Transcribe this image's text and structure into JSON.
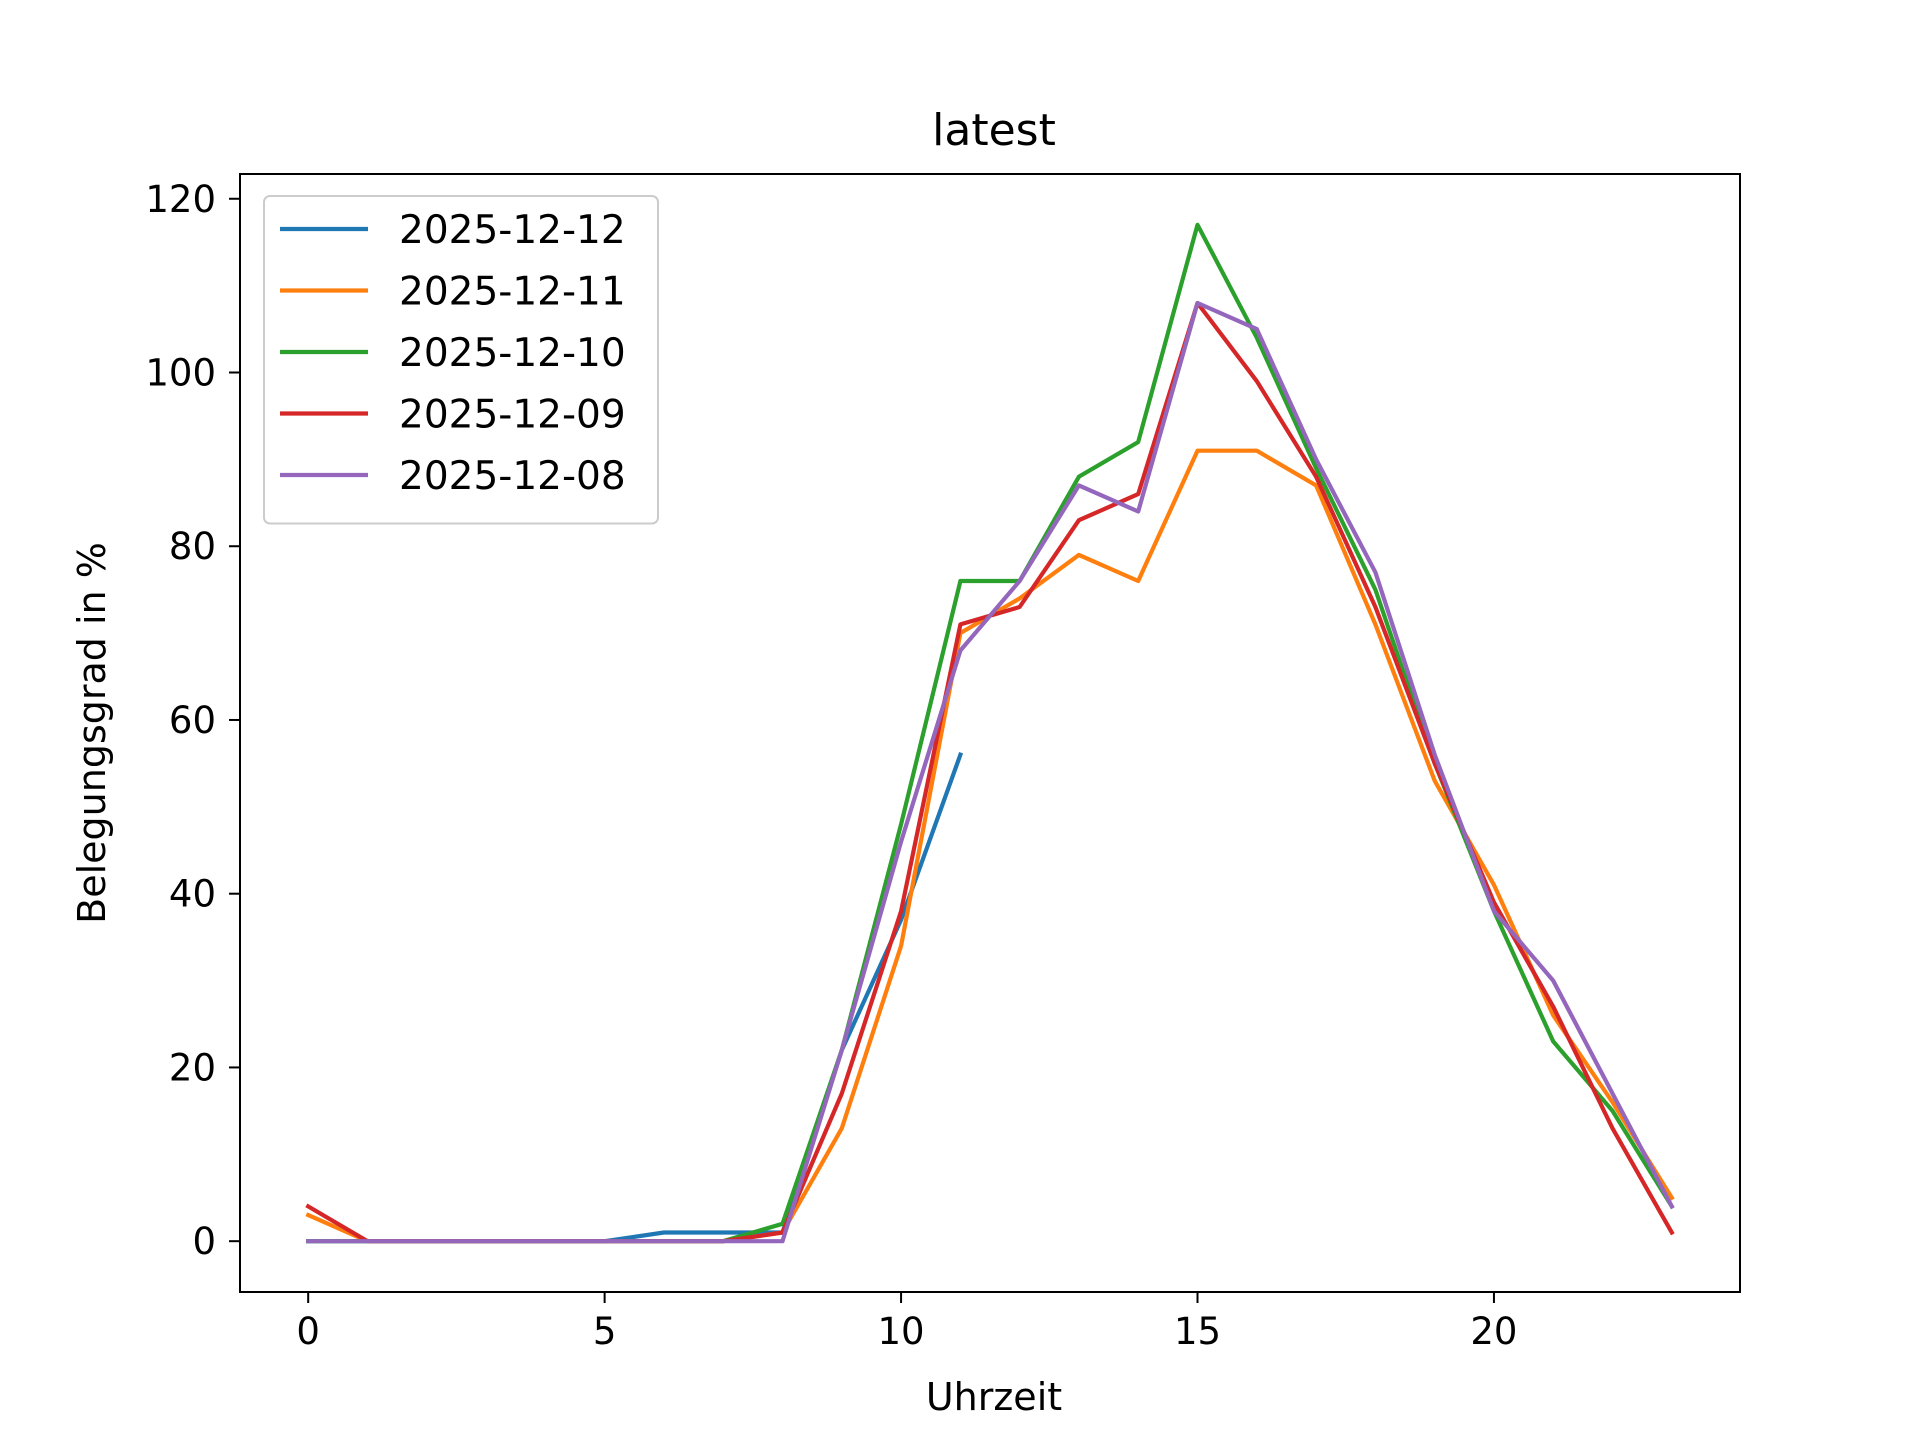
{
  "chart_data": {
    "type": "line",
    "title": "latest",
    "xlabel": "Uhrzeit",
    "ylabel": "Belegungsgrad in %",
    "xlim": [
      -1.15,
      24.15
    ],
    "ylim": [
      -5.85,
      122.85
    ],
    "xticks": [
      0,
      5,
      10,
      15,
      20
    ],
    "yticks": [
      0,
      20,
      40,
      60,
      80,
      100,
      120
    ],
    "grid": false,
    "legend_position": "upper-left",
    "series": [
      {
        "name": "2025-12-12",
        "color": "#1f77b4",
        "x": [
          0,
          1,
          2,
          3,
          4,
          5,
          6,
          7,
          8,
          9,
          10,
          11
        ],
        "y": [
          0,
          0,
          0,
          0,
          0,
          0,
          1,
          1,
          1,
          22,
          37,
          56
        ]
      },
      {
        "name": "2025-12-11",
        "color": "#ff7f0e",
        "x": [
          0,
          1,
          2,
          3,
          4,
          5,
          6,
          7,
          8,
          9,
          10,
          11,
          12,
          13,
          14,
          15,
          16,
          17,
          18,
          19,
          20,
          21,
          22,
          23
        ],
        "y": [
          3,
          0,
          0,
          0,
          0,
          0,
          0,
          0,
          1,
          13,
          34,
          70,
          74,
          79,
          76,
          91,
          91,
          87,
          71,
          53,
          41,
          26,
          16,
          5
        ]
      },
      {
        "name": "2025-12-10",
        "color": "#2ca02c",
        "x": [
          0,
          1,
          2,
          3,
          4,
          5,
          6,
          7,
          8,
          9,
          10,
          11,
          12,
          13,
          14,
          15,
          16,
          17,
          18,
          19,
          20,
          21,
          22,
          23
        ],
        "y": [
          0,
          0,
          0,
          0,
          0,
          0,
          0,
          0,
          2,
          22,
          48,
          76,
          76,
          88,
          92,
          117,
          104,
          89,
          75,
          55,
          38,
          23,
          15,
          4
        ]
      },
      {
        "name": "2025-12-09",
        "color": "#d62728",
        "x": [
          0,
          1,
          2,
          3,
          4,
          5,
          6,
          7,
          8,
          9,
          10,
          11,
          12,
          13,
          14,
          15,
          16,
          17,
          18,
          19,
          20,
          21,
          22,
          23
        ],
        "y": [
          4,
          0,
          0,
          0,
          0,
          0,
          0,
          0,
          1,
          17,
          38,
          71,
          73,
          83,
          86,
          108,
          99,
          88,
          73,
          55,
          39,
          27,
          13,
          1
        ]
      },
      {
        "name": "2025-12-08",
        "color": "#9467bd",
        "x": [
          0,
          1,
          2,
          3,
          4,
          5,
          6,
          7,
          8,
          9,
          10,
          11,
          12,
          13,
          14,
          15,
          16,
          17,
          18,
          19,
          20,
          21,
          22,
          23
        ],
        "y": [
          0,
          0,
          0,
          0,
          0,
          0,
          0,
          0,
          0,
          22,
          46,
          68,
          76,
          87,
          84,
          108,
          105,
          90,
          77,
          56,
          38,
          30,
          17,
          4
        ]
      }
    ]
  }
}
